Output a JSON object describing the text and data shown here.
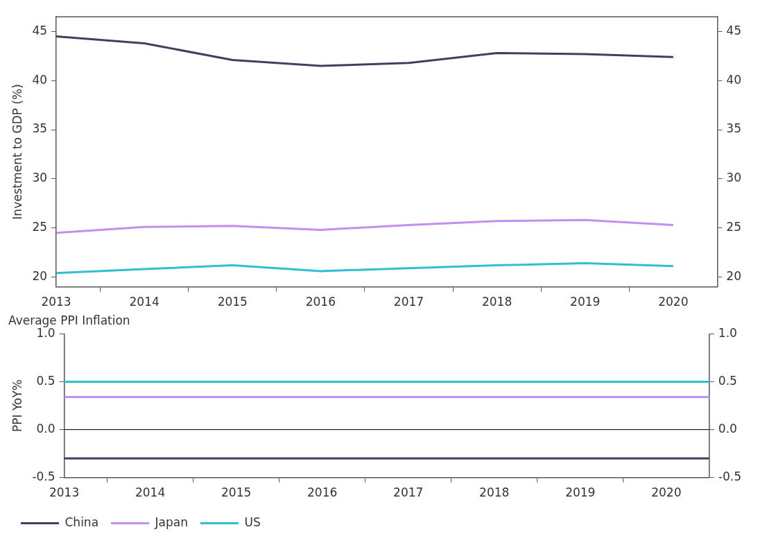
{
  "chart_data": [
    {
      "type": "line",
      "ylabel": "Investment to GDP (%)",
      "x": [
        2013,
        2014,
        2015,
        2016,
        2017,
        2018,
        2019,
        2020
      ],
      "series": [
        {
          "color": "#4a3a5e",
          "values": [
            44.5,
            43.8,
            42.1,
            41.5,
            41.8,
            42.8,
            42.7,
            42.4
          ]
        },
        {
          "color": "#c38ef0",
          "values": [
            24.5,
            25.1,
            25.2,
            24.8,
            25.3,
            25.7,
            25.8,
            25.3
          ]
        },
        {
          "color": "#2fbfcf",
          "values": [
            20.4,
            20.8,
            21.2,
            20.6,
            20.9,
            21.2,
            21.4,
            21.1
          ]
        }
      ],
      "xlim": [
        2013,
        2020.5
      ],
      "xticks": [
        2013,
        {
          "value": 2013.5,
          "label": null
        },
        2014,
        {
          "value": 2014.5,
          "label": null
        },
        2015,
        {
          "value": 2015.5,
          "label": null
        },
        2016,
        {
          "value": 2016.5,
          "label": null
        },
        2017,
        {
          "value": 2017.5,
          "label": null
        },
        2018,
        {
          "value": 2018.5,
          "label": null
        },
        2019,
        {
          "value": 2019.5,
          "label": null
        },
        2020
      ],
      "ylim": [
        19,
        46.5
      ],
      "yticks": [
        20,
        25,
        30,
        35,
        40,
        45
      ],
      "y2lim": [
        19,
        46.5
      ],
      "y2ticks": [
        20,
        25,
        30,
        35,
        40,
        45
      ],
      "grid": false,
      "legend": false,
      "marker": "none",
      "line_style": "solid"
    },
    {
      "type": "line",
      "title": "Average PPI Inflation",
      "ylabel": "PPI YoY%",
      "x": [
        2013,
        2020.5
      ],
      "series": [
        {
          "name": "China",
          "color": "#4a3a5e",
          "values": [
            -0.3,
            -0.3
          ]
        },
        {
          "name": "Japan",
          "color": "#c38ef0",
          "values": [
            0.34,
            0.34
          ]
        },
        {
          "name": "US",
          "color": "#2fbfcf",
          "values": [
            0.5,
            0.5
          ]
        }
      ],
      "xlim": [
        2013,
        2020.5
      ],
      "xticks": [
        2013,
        {
          "value": 2013.5,
          "label": null
        },
        2014,
        {
          "value": 2014.5,
          "label": null
        },
        2015,
        {
          "value": 2015.5,
          "label": null
        },
        2016,
        {
          "value": 2016.5,
          "label": null
        },
        2017,
        {
          "value": 2017.5,
          "label": null
        },
        2018,
        {
          "value": 2018.5,
          "label": null
        },
        2019,
        {
          "value": 2019.5,
          "label": null
        },
        2020
      ],
      "ylim": [
        -0.5,
        1
      ],
      "yticks": [
        {
          "value": -0.5,
          "label": "-0.5"
        },
        {
          "value": 0,
          "label": "0.0"
        },
        {
          "value": 0.5,
          "label": "0.5"
        },
        {
          "value": 1,
          "label": "1.0"
        }
      ],
      "y2lim": [
        -0.5,
        1
      ],
      "y2ticks": [
        {
          "value": -0.5,
          "label": "-0.5"
        },
        {
          "value": 0,
          "label": "0.0"
        },
        {
          "value": 0.5,
          "label": "0.5"
        },
        {
          "value": 1,
          "label": "1.0"
        }
      ],
      "ref_lines": [
        {
          "axis": "y",
          "value": 0,
          "color": "#000000"
        }
      ],
      "grid": false,
      "legend": "bottom left",
      "marker": "none",
      "line_style": "solid"
    }
  ]
}
